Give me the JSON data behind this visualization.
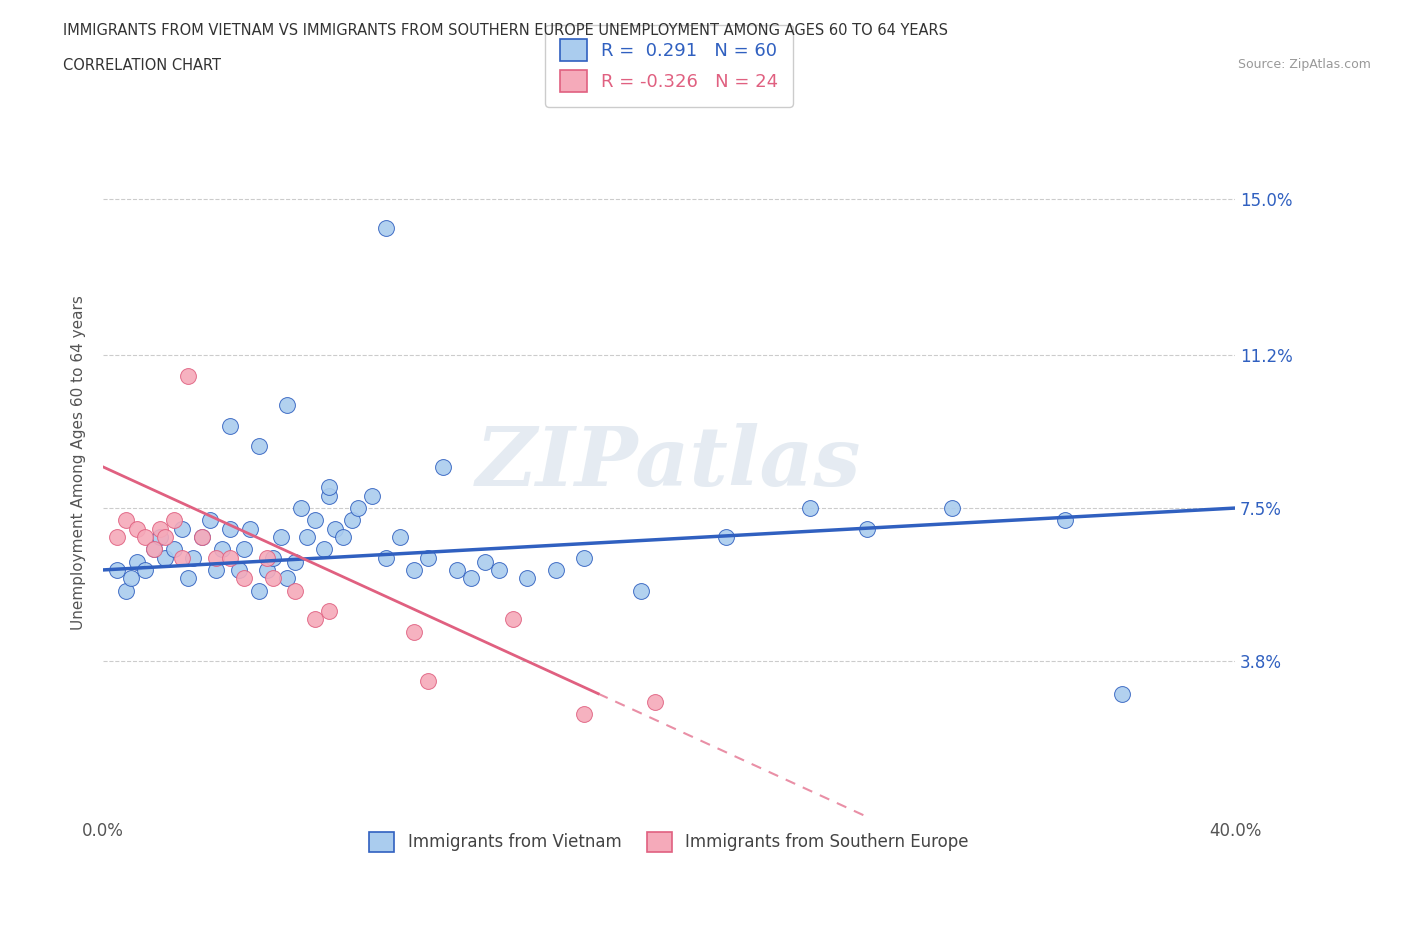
{
  "title_line1": "IMMIGRANTS FROM VIETNAM VS IMMIGRANTS FROM SOUTHERN EUROPE UNEMPLOYMENT AMONG AGES 60 TO 64 YEARS",
  "title_line2": "CORRELATION CHART",
  "source": "Source: ZipAtlas.com",
  "ylabel": "Unemployment Among Ages 60 to 64 years",
  "xlim": [
    0.0,
    0.4
  ],
  "ylim": [
    0.0,
    0.172
  ],
  "xticks": [
    0.0,
    0.1,
    0.2,
    0.3,
    0.4
  ],
  "xticklabels": [
    "0.0%",
    "",
    "",
    "",
    "40.0%"
  ],
  "ytick_positions": [
    0.038,
    0.075,
    0.112,
    0.15
  ],
  "ytick_labels": [
    "3.8%",
    "7.5%",
    "11.2%",
    "15.0%"
  ],
  "r_vietnam": 0.291,
  "n_vietnam": 60,
  "r_southern": -0.326,
  "n_southern": 24,
  "vietnam_color": "#aaccee",
  "southern_color": "#f5aaba",
  "trendline_vietnam_color": "#3060c0",
  "trendline_southern_color": "#e06080",
  "watermark": "ZIPatlas",
  "legend_label_vietnam": "Immigrants from Vietnam",
  "legend_label_southern": "Immigrants from Southern Europe",
  "vietnam_x": [
    0.005,
    0.008,
    0.01,
    0.012,
    0.015,
    0.018,
    0.02,
    0.022,
    0.025,
    0.028,
    0.03,
    0.032,
    0.035,
    0.038,
    0.04,
    0.042,
    0.045,
    0.048,
    0.05,
    0.052,
    0.055,
    0.058,
    0.06,
    0.063,
    0.065,
    0.068,
    0.07,
    0.072,
    0.075,
    0.078,
    0.08,
    0.082,
    0.085,
    0.088,
    0.09,
    0.095,
    0.1,
    0.105,
    0.11,
    0.115,
    0.12,
    0.125,
    0.13,
    0.135,
    0.14,
    0.15,
    0.16,
    0.17,
    0.19,
    0.22,
    0.25,
    0.27,
    0.3,
    0.34,
    0.36,
    0.045,
    0.055,
    0.065,
    0.08,
    0.1
  ],
  "vietnam_y": [
    0.06,
    0.055,
    0.058,
    0.062,
    0.06,
    0.065,
    0.068,
    0.063,
    0.065,
    0.07,
    0.058,
    0.063,
    0.068,
    0.072,
    0.06,
    0.065,
    0.07,
    0.06,
    0.065,
    0.07,
    0.055,
    0.06,
    0.063,
    0.068,
    0.058,
    0.062,
    0.075,
    0.068,
    0.072,
    0.065,
    0.078,
    0.07,
    0.068,
    0.072,
    0.075,
    0.078,
    0.063,
    0.068,
    0.06,
    0.063,
    0.085,
    0.06,
    0.058,
    0.062,
    0.06,
    0.058,
    0.06,
    0.063,
    0.055,
    0.068,
    0.075,
    0.07,
    0.075,
    0.072,
    0.03,
    0.095,
    0.09,
    0.1,
    0.08,
    0.143
  ],
  "southern_x": [
    0.005,
    0.008,
    0.012,
    0.015,
    0.018,
    0.02,
    0.022,
    0.025,
    0.028,
    0.03,
    0.035,
    0.04,
    0.045,
    0.05,
    0.058,
    0.06,
    0.068,
    0.075,
    0.08,
    0.11,
    0.115,
    0.145,
    0.17,
    0.195
  ],
  "southern_y": [
    0.068,
    0.072,
    0.07,
    0.068,
    0.065,
    0.07,
    0.068,
    0.072,
    0.063,
    0.107,
    0.068,
    0.063,
    0.063,
    0.058,
    0.063,
    0.058,
    0.055,
    0.048,
    0.05,
    0.045,
    0.033,
    0.048,
    0.025,
    0.028
  ],
  "trendline_vietnam_start_y": 0.06,
  "trendline_vietnam_end_y": 0.075,
  "trendline_southern_start_y": 0.085,
  "trendline_southern_end_at_x": 0.175,
  "trendline_southern_end_y": 0.03
}
